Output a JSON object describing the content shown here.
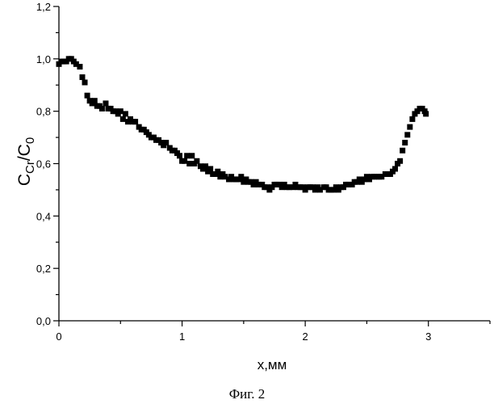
{
  "chart_data": {
    "type": "scatter",
    "title": "",
    "xlabel": "x,мм",
    "ylabel": "C_Cr/C_0",
    "xlim": [
      0,
      3.5
    ],
    "ylim": [
      0,
      1.2
    ],
    "xticks": [
      "0",
      "1",
      "2",
      "3"
    ],
    "yticks": [
      "0,0",
      "0,2",
      "0,4",
      "0,6",
      "0,8",
      "1,0",
      "1,2"
    ],
    "grid": false,
    "marker": "square",
    "marker_color": "#000000",
    "points": [
      [
        0.0,
        0.98
      ],
      [
        0.02,
        0.99
      ],
      [
        0.04,
        0.99
      ],
      [
        0.06,
        0.99
      ],
      [
        0.08,
        1.0
      ],
      [
        0.1,
        1.0
      ],
      [
        0.12,
        0.99
      ],
      [
        0.14,
        0.98
      ],
      [
        0.17,
        0.97
      ],
      [
        0.19,
        0.93
      ],
      [
        0.21,
        0.91
      ],
      [
        0.23,
        0.86
      ],
      [
        0.25,
        0.84
      ],
      [
        0.27,
        0.83
      ],
      [
        0.29,
        0.84
      ],
      [
        0.31,
        0.82
      ],
      [
        0.33,
        0.82
      ],
      [
        0.35,
        0.81
      ],
      [
        0.38,
        0.83
      ],
      [
        0.4,
        0.81
      ],
      [
        0.42,
        0.81
      ],
      [
        0.44,
        0.8
      ],
      [
        0.46,
        0.8
      ],
      [
        0.48,
        0.79
      ],
      [
        0.5,
        0.8
      ],
      [
        0.52,
        0.77
      ],
      [
        0.54,
        0.79
      ],
      [
        0.56,
        0.76
      ],
      [
        0.58,
        0.77
      ],
      [
        0.6,
        0.76
      ],
      [
        0.62,
        0.76
      ],
      [
        0.65,
        0.74
      ],
      [
        0.67,
        0.73
      ],
      [
        0.69,
        0.73
      ],
      [
        0.71,
        0.72
      ],
      [
        0.73,
        0.71
      ],
      [
        0.75,
        0.7
      ],
      [
        0.77,
        0.7
      ],
      [
        0.79,
        0.69
      ],
      [
        0.81,
        0.69
      ],
      [
        0.83,
        0.68
      ],
      [
        0.85,
        0.67
      ],
      [
        0.87,
        0.68
      ],
      [
        0.9,
        0.66
      ],
      [
        0.92,
        0.65
      ],
      [
        0.94,
        0.65
      ],
      [
        0.96,
        0.64
      ],
      [
        0.98,
        0.63
      ],
      [
        1.0,
        0.61
      ],
      [
        1.02,
        0.61
      ],
      [
        1.04,
        0.63
      ],
      [
        1.06,
        0.6
      ],
      [
        1.08,
        0.63
      ],
      [
        1.1,
        0.6
      ],
      [
        1.12,
        0.61
      ],
      [
        1.15,
        0.59
      ],
      [
        1.17,
        0.58
      ],
      [
        1.19,
        0.59
      ],
      [
        1.21,
        0.57
      ],
      [
        1.23,
        0.58
      ],
      [
        1.25,
        0.56
      ],
      [
        1.27,
        0.56
      ],
      [
        1.29,
        0.57
      ],
      [
        1.31,
        0.55
      ],
      [
        1.33,
        0.56
      ],
      [
        1.35,
        0.55
      ],
      [
        1.38,
        0.54
      ],
      [
        1.4,
        0.55
      ],
      [
        1.42,
        0.54
      ],
      [
        1.44,
        0.54
      ],
      [
        1.46,
        0.54
      ],
      [
        1.48,
        0.55
      ],
      [
        1.5,
        0.53
      ],
      [
        1.52,
        0.54
      ],
      [
        1.54,
        0.53
      ],
      [
        1.56,
        0.53
      ],
      [
        1.58,
        0.52
      ],
      [
        1.6,
        0.53
      ],
      [
        1.62,
        0.52
      ],
      [
        1.65,
        0.52
      ],
      [
        1.67,
        0.51
      ],
      [
        1.69,
        0.51
      ],
      [
        1.71,
        0.5
      ],
      [
        1.73,
        0.51
      ],
      [
        1.75,
        0.52
      ],
      [
        1.77,
        0.52
      ],
      [
        1.79,
        0.52
      ],
      [
        1.81,
        0.51
      ],
      [
        1.83,
        0.52
      ],
      [
        1.85,
        0.51
      ],
      [
        1.87,
        0.51
      ],
      [
        1.9,
        0.51
      ],
      [
        1.92,
        0.52
      ],
      [
        1.94,
        0.51
      ],
      [
        1.96,
        0.51
      ],
      [
        1.98,
        0.51
      ],
      [
        2.0,
        0.5
      ],
      [
        2.02,
        0.51
      ],
      [
        2.04,
        0.51
      ],
      [
        2.06,
        0.51
      ],
      [
        2.08,
        0.5
      ],
      [
        2.1,
        0.51
      ],
      [
        2.12,
        0.5
      ],
      [
        2.15,
        0.51
      ],
      [
        2.17,
        0.51
      ],
      [
        2.19,
        0.5
      ],
      [
        2.21,
        0.5
      ],
      [
        2.23,
        0.5
      ],
      [
        2.25,
        0.51
      ],
      [
        2.27,
        0.5
      ],
      [
        2.29,
        0.51
      ],
      [
        2.31,
        0.51
      ],
      [
        2.33,
        0.52
      ],
      [
        2.35,
        0.52
      ],
      [
        2.38,
        0.52
      ],
      [
        2.4,
        0.53
      ],
      [
        2.42,
        0.53
      ],
      [
        2.44,
        0.54
      ],
      [
        2.46,
        0.53
      ],
      [
        2.48,
        0.54
      ],
      [
        2.5,
        0.55
      ],
      [
        2.52,
        0.54
      ],
      [
        2.54,
        0.55
      ],
      [
        2.56,
        0.55
      ],
      [
        2.58,
        0.55
      ],
      [
        2.6,
        0.55
      ],
      [
        2.62,
        0.55
      ],
      [
        2.65,
        0.56
      ],
      [
        2.67,
        0.56
      ],
      [
        2.69,
        0.56
      ],
      [
        2.71,
        0.57
      ],
      [
        2.73,
        0.58
      ],
      [
        2.75,
        0.6
      ],
      [
        2.77,
        0.61
      ],
      [
        2.79,
        0.65
      ],
      [
        2.81,
        0.68
      ],
      [
        2.83,
        0.71
      ],
      [
        2.85,
        0.74
      ],
      [
        2.87,
        0.77
      ],
      [
        2.89,
        0.79
      ],
      [
        2.91,
        0.8
      ],
      [
        2.93,
        0.81
      ],
      [
        2.95,
        0.81
      ],
      [
        2.97,
        0.8
      ],
      [
        2.98,
        0.79
      ]
    ]
  },
  "caption": "Фиг. 2"
}
